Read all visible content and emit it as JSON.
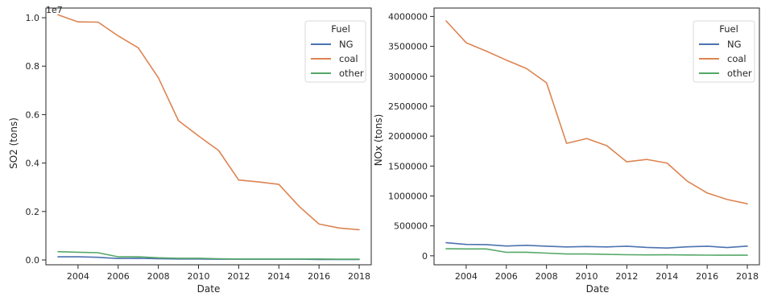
{
  "chart_data": [
    {
      "type": "line",
      "xlabel": "Date",
      "ylabel": "SO2 (tons)",
      "offset_text": "1e7",
      "x": [
        2003,
        2004,
        2005,
        2006,
        2007,
        2008,
        2009,
        2010,
        2011,
        2012,
        2013,
        2014,
        2015,
        2016,
        2017,
        2018
      ],
      "xlim": [
        2002.4,
        2018.6
      ],
      "ylim": [
        -0.02,
        1.04
      ],
      "xticks": [
        2004,
        2006,
        2008,
        2010,
        2012,
        2014,
        2016,
        2018
      ],
      "xtick_labels": [
        "2004",
        "2006",
        "2008",
        "2010",
        "2012",
        "2014",
        "2016",
        "2018"
      ],
      "yticks": [
        0.0,
        0.2,
        0.4,
        0.6,
        0.8,
        1.0
      ],
      "ytick_labels": [
        "0.0",
        "0.2",
        "0.4",
        "0.6",
        "0.8",
        "1.0"
      ],
      "grid": false,
      "legend": {
        "title": "Fuel",
        "placement": "upper right",
        "entries": [
          "NG",
          "coal",
          "other"
        ]
      },
      "series": [
        {
          "name": "NG",
          "color": "#4c72b0",
          "values": [
            0.013,
            0.013,
            0.011,
            0.006,
            0.007,
            0.005,
            0.004,
            0.004,
            0.003,
            0.003,
            0.003,
            0.003,
            0.003,
            0.002,
            0.002,
            0.002
          ]
        },
        {
          "name": "coal",
          "color": "#dd8452",
          "values": [
            1.012,
            0.983,
            0.982,
            0.925,
            0.876,
            0.752,
            0.575,
            0.512,
            0.452,
            0.33,
            0.322,
            0.312,
            0.222,
            0.148,
            0.132,
            0.125
          ]
        },
        {
          "name": "other",
          "color": "#55a868",
          "values": [
            0.034,
            0.032,
            0.03,
            0.013,
            0.013,
            0.009,
            0.007,
            0.007,
            0.005,
            0.004,
            0.004,
            0.004,
            0.004,
            0.004,
            0.003,
            0.003
          ]
        }
      ]
    },
    {
      "type": "line",
      "xlabel": "Date",
      "ylabel": "NOx (tons)",
      "x": [
        2003,
        2004,
        2005,
        2006,
        2007,
        2008,
        2009,
        2010,
        2011,
        2012,
        2013,
        2014,
        2015,
        2016,
        2017,
        2018
      ],
      "xlim": [
        2002.4,
        2018.6
      ],
      "ylim": [
        -150000,
        4140000
      ],
      "xticks": [
        2004,
        2006,
        2008,
        2010,
        2012,
        2014,
        2016,
        2018
      ],
      "xtick_labels": [
        "2004",
        "2006",
        "2008",
        "2010",
        "2012",
        "2014",
        "2016",
        "2018"
      ],
      "yticks": [
        0,
        500000,
        1000000,
        1500000,
        2000000,
        2500000,
        3000000,
        3500000,
        4000000
      ],
      "ytick_labels": [
        "0",
        "500000",
        "1000000",
        "1500000",
        "2000000",
        "2500000",
        "3000000",
        "3500000",
        "4000000"
      ],
      "grid": false,
      "legend": {
        "title": "Fuel",
        "placement": "upper right",
        "entries": [
          "NG",
          "coal",
          "other"
        ]
      },
      "series": [
        {
          "name": "NG",
          "color": "#4c72b0",
          "values": [
            218000,
            190000,
            188000,
            163000,
            175000,
            160000,
            148000,
            155000,
            148000,
            160000,
            140000,
            130000,
            150000,
            160000,
            138000,
            162000
          ]
        },
        {
          "name": "coal",
          "color": "#dd8452",
          "values": [
            3925000,
            3560000,
            3420000,
            3270000,
            3130000,
            2890000,
            1880000,
            1960000,
            1840000,
            1570000,
            1610000,
            1550000,
            1250000,
            1050000,
            940000,
            870000
          ]
        },
        {
          "name": "other",
          "color": "#55a868",
          "values": [
            118000,
            115000,
            115000,
            58000,
            60000,
            45000,
            30000,
            30000,
            24000,
            18000,
            15000,
            17000,
            14000,
            12000,
            10000,
            10000
          ]
        }
      ]
    }
  ]
}
